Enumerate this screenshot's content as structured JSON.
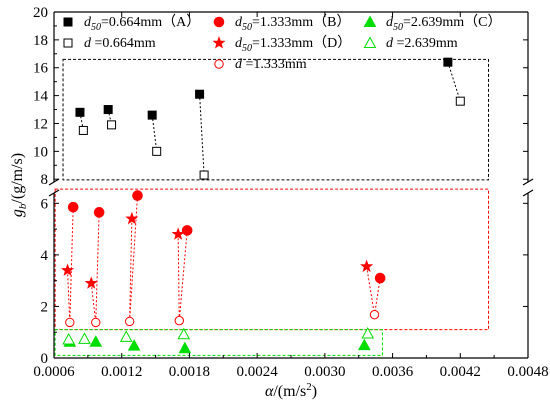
{
  "chart_data": {
    "type": "scatter",
    "x_axis": {
      "label": "α/(m/s²)",
      "min": 0.0006,
      "max": 0.0048,
      "ticks": [
        0.0006,
        0.0012,
        0.0018,
        0.0024,
        0.003,
        0.0036,
        0.0042,
        0.0048
      ],
      "tick_labels": [
        "0.0006",
        "0.0012",
        "0.0018",
        "0.0024",
        "0.0030",
        "0.0036",
        "0.0042",
        "0.0048"
      ]
    },
    "y_axis": {
      "label": "gb/(g/m/s)",
      "broken": true,
      "lower_segment": {
        "min": 0,
        "max": 6.4,
        "ticks": [
          0,
          2,
          4,
          6
        ],
        "tick_labels": [
          "0",
          "2",
          "4",
          "6"
        ]
      },
      "upper_segment": {
        "min": 7.8,
        "max": 20,
        "ticks": [
          8,
          10,
          12,
          14,
          16,
          18,
          20
        ],
        "tick_labels": [
          "8",
          "10",
          "12",
          "14",
          "16",
          "18",
          "20"
        ]
      }
    },
    "legend": {
      "placement": "top",
      "entries": [
        {
          "key": "A",
          "label_html": "<tspan font-style='italic'>d</tspan><tspan font-style='italic' font-size='10' dy='4'>50</tspan><tspan dy='-4'>=0.664mm（A）</tspan>"
        },
        {
          "key": "A_d",
          "label_html": "<tspan font-style='italic'>d</tspan><tspan>    =0.664mm</tspan>"
        },
        {
          "key": "B",
          "label_html": "<tspan font-style='italic'>d</tspan><tspan font-style='italic' font-size='10' dy='4'>50</tspan><tspan dy='-4'>=1.333mm（B）</tspan>"
        },
        {
          "key": "D",
          "label_html": "<tspan font-style='italic'>d</tspan><tspan font-style='italic' font-size='10' dy='4'>50</tspan><tspan dy='-4'>=1.333mm（D）</tspan>"
        },
        {
          "key": "BD_d",
          "label_html": "<tspan font-style='italic'>d</tspan><tspan>    =1.333mm</tspan>"
        },
        {
          "key": "C",
          "label_html": "<tspan font-style='italic'>d</tspan><tspan font-style='italic' font-size='10' dy='4'>50</tspan><tspan dy='-4'>=2.639mm（C）</tspan>"
        },
        {
          "key": "C_d",
          "label_html": "<tspan font-style='italic'>d</tspan><tspan>    =2.639mm</tspan>"
        }
      ]
    },
    "series": [
      {
        "name": "d50=0.664mm（A）",
        "color": "#000000",
        "marker": "square-filled",
        "points": [
          [
            0.00083,
            12.8
          ],
          [
            0.00108,
            13.0
          ],
          [
            0.00147,
            12.6
          ],
          [
            0.00189,
            14.1
          ],
          [
            0.00409,
            16.4
          ]
        ]
      },
      {
        "name": "d =0.664mm",
        "color": "#000000",
        "marker": "square-open",
        "points": [
          [
            0.00086,
            11.5
          ],
          [
            0.00111,
            11.9
          ],
          [
            0.00151,
            10.0
          ],
          [
            0.00193,
            8.3
          ],
          [
            0.0042,
            13.6
          ]
        ]
      },
      {
        "name": "d50=1.333mm（B）",
        "color": "#ff0000",
        "marker": "circle-filled",
        "points": [
          [
            0.00077,
            5.85
          ],
          [
            0.001,
            5.65
          ],
          [
            0.00134,
            6.3
          ],
          [
            0.00178,
            4.95
          ],
          [
            0.00349,
            3.1
          ]
        ]
      },
      {
        "name": "d50=1.333mm（D）",
        "color": "#ff0000",
        "marker": "star-filled",
        "points": [
          [
            0.00072,
            3.4
          ],
          [
            0.00093,
            2.9
          ],
          [
            0.00129,
            5.4
          ],
          [
            0.0017,
            4.8
          ],
          [
            0.00337,
            3.55
          ]
        ]
      },
      {
        "name": "d =1.333mm",
        "color": "#ff0000",
        "marker": "circle-open",
        "points": [
          [
            0.00074,
            1.38
          ],
          [
            0.00097,
            1.38
          ],
          [
            0.00127,
            1.42
          ],
          [
            0.00171,
            1.45
          ],
          [
            0.00344,
            1.68
          ]
        ]
      },
      {
        "name": "d50=2.639mm（C）",
        "color": "#00dd00",
        "marker": "triangle-filled",
        "points": [
          [
            0.00074,
            0.63
          ],
          [
            0.00097,
            0.63
          ],
          [
            0.00131,
            0.48
          ],
          [
            0.00176,
            0.38
          ],
          [
            0.00335,
            0.5
          ]
        ]
      },
      {
        "name": "d =2.639mm",
        "color": "#00dd00",
        "marker": "triangle-open",
        "points": [
          [
            0.00073,
            0.72
          ],
          [
            0.00087,
            0.74
          ],
          [
            0.00124,
            0.82
          ],
          [
            0.00175,
            0.92
          ],
          [
            0.00338,
            0.95
          ]
        ]
      }
    ],
    "pairs": [
      {
        "from": "A",
        "to": "A_d",
        "color": "#000000"
      },
      {
        "from": "B",
        "to": "BD_d",
        "color": "#ff0000"
      },
      {
        "from": "D",
        "to": "BD_d",
        "color": "#ff0000"
      }
    ],
    "highlight_boxes": [
      {
        "color": "#000000",
        "x_range": [
          0.00068,
          0.00445
        ],
        "y_segment": "upper",
        "y_range": [
          7.95,
          16.6
        ]
      },
      {
        "color": "#ff0000",
        "x_range": [
          0.00061,
          0.00445
        ],
        "y_segment": "lower",
        "y_range": [
          1.1,
          6.55
        ]
      },
      {
        "color": "#00dd00",
        "x_range": [
          0.00061,
          0.00351
        ],
        "y_segment": "lower",
        "y_range": [
          0.1,
          1.1
        ]
      }
    ],
    "grid": false
  }
}
